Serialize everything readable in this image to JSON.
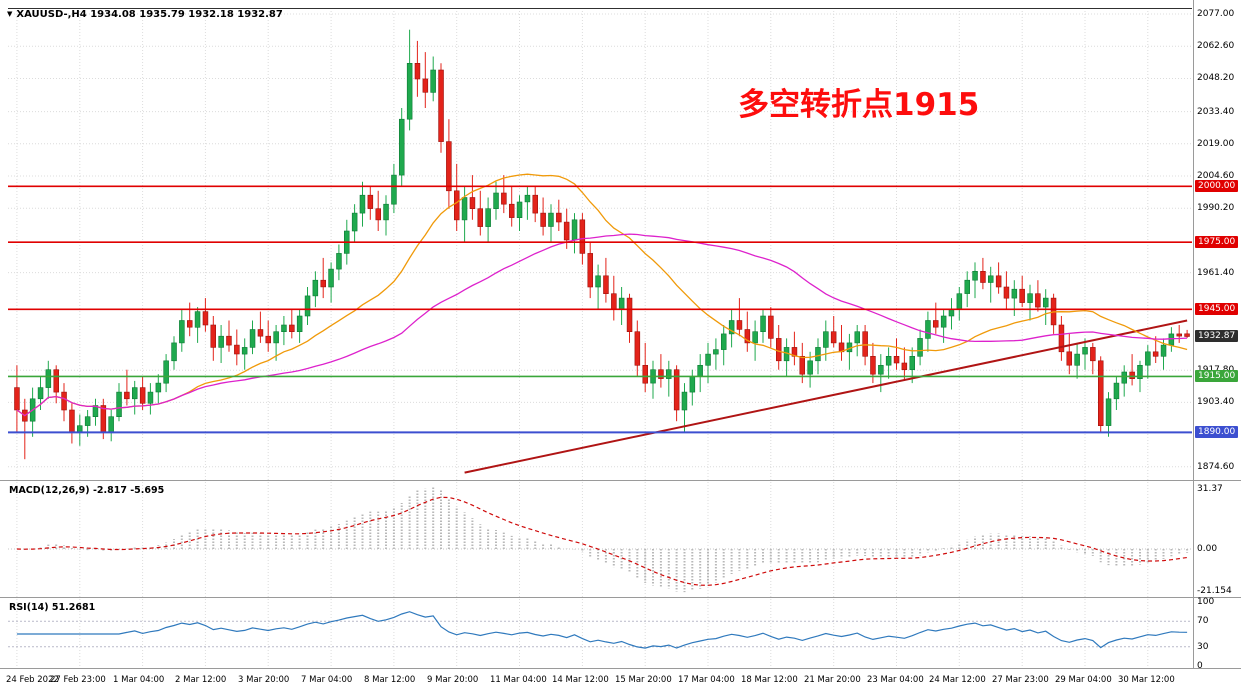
{
  "header": {
    "symbol_line": "XAUUSD-,H4 1934.08 1935.79 1932.18 1932.87"
  },
  "annotation": {
    "text": "多空转折点1915",
    "color": "#fd0d0d"
  },
  "colors": {
    "candle_up": "#1fa94e",
    "candle_up_border": "#0c7a34",
    "candle_down": "#e3231a",
    "candle_down_border": "#9c100c",
    "grid": "#dcdcdc",
    "separator": "#9a9a9a",
    "chart_top_border": "#303030",
    "macd_hist": "#b8b8b8",
    "macd_signal": "#cf0a0a",
    "rsi": "#2f79bd",
    "rsi_levels": "#b9b9c9"
  },
  "chart_data": {
    "type": "candlestick",
    "symbol": "XAUUSD-",
    "timeframe": "H4",
    "ohlc_display": {
      "open": "1934.08",
      "high": "1935.79",
      "low": "1932.18",
      "close": "1932.87"
    },
    "price_ticks": [
      2077.0,
      2062.6,
      2048.2,
      2033.4,
      2019.0,
      2004.6,
      1990.2,
      1961.4,
      1917.8,
      1903.4,
      1874.6
    ],
    "price_tags": [
      {
        "label": "2000.00",
        "price": 2000.0,
        "bg": "#e00000",
        "line_color": "#e00000",
        "line_width": 1.6
      },
      {
        "label": "1975.00",
        "price": 1975.0,
        "bg": "#e00000",
        "line_color": "#e00000",
        "line_width": 1.6
      },
      {
        "label": "1945.00",
        "price": 1945.0,
        "bg": "#e00000",
        "line_color": "#e00000",
        "line_width": 1.6
      },
      {
        "label": "1932.87",
        "price": 1932.87,
        "bg": "#2e2e2e"
      },
      {
        "label": "1915.00",
        "price": 1915.0,
        "bg": "#3aa63a",
        "line_color": "#3aa63a",
        "line_width": 1.6
      },
      {
        "label": "1890.00",
        "price": 1890.0,
        "bg": "#3c4fd0",
        "line_color": "#3c4fd0",
        "line_width": 2
      }
    ],
    "time_labels": [
      "24 Feb 2022",
      "27 Feb 23:00",
      "1 Mar 04:00",
      "2 Mar 12:00",
      "3 Mar 20:00",
      "7 Mar 04:00",
      "8 Mar 12:00",
      "9 Mar 20:00",
      "11 Mar 04:00",
      "14 Mar 12:00",
      "15 Mar 20:00",
      "17 Mar 04:00",
      "18 Mar 12:00",
      "21 Mar 20:00",
      "23 Mar 04:00",
      "24 Mar 12:00",
      "27 Mar 23:00",
      "29 Mar 04:00",
      "30 Mar 12:00"
    ],
    "candles_per_label": 8,
    "candles": [
      [
        1910,
        1920,
        1890,
        1900
      ],
      [
        1900,
        1905,
        1878,
        1895
      ],
      [
        1895,
        1910,
        1888,
        1905
      ],
      [
        1905,
        1915,
        1900,
        1910
      ],
      [
        1910,
        1922,
        1905,
        1918
      ],
      [
        1918,
        1920,
        1903,
        1908
      ],
      [
        1908,
        1912,
        1895,
        1900
      ],
      [
        1900,
        1903,
        1885,
        1890
      ],
      [
        1890,
        1898,
        1884,
        1893
      ],
      [
        1893,
        1900,
        1888,
        1897
      ],
      [
        1897,
        1905,
        1893,
        1902
      ],
      [
        1902,
        1905,
        1887,
        1890
      ],
      [
        1890,
        1900,
        1886,
        1897
      ],
      [
        1897,
        1912,
        1895,
        1908
      ],
      [
        1908,
        1918,
        1902,
        1905
      ],
      [
        1905,
        1913,
        1898,
        1910
      ],
      [
        1910,
        1915,
        1900,
        1903
      ],
      [
        1903,
        1912,
        1898,
        1908
      ],
      [
        1908,
        1916,
        1903,
        1912
      ],
      [
        1912,
        1925,
        1908,
        1922
      ],
      [
        1922,
        1933,
        1918,
        1930
      ],
      [
        1930,
        1945,
        1926,
        1940
      ],
      [
        1940,
        1948,
        1933,
        1937
      ],
      [
        1937,
        1946,
        1930,
        1944
      ],
      [
        1944,
        1950,
        1935,
        1938
      ],
      [
        1938,
        1942,
        1922,
        1928
      ],
      [
        1928,
        1938,
        1921,
        1933
      ],
      [
        1933,
        1940,
        1926,
        1929
      ],
      [
        1929,
        1936,
        1920,
        1925
      ],
      [
        1925,
        1932,
        1918,
        1928
      ],
      [
        1928,
        1940,
        1925,
        1936
      ],
      [
        1936,
        1944,
        1930,
        1933
      ],
      [
        1933,
        1940,
        1926,
        1930
      ],
      [
        1930,
        1938,
        1922,
        1935
      ],
      [
        1935,
        1942,
        1929,
        1938
      ],
      [
        1938,
        1945,
        1932,
        1935
      ],
      [
        1935,
        1945,
        1930,
        1942
      ],
      [
        1942,
        1955,
        1938,
        1951
      ],
      [
        1951,
        1962,
        1946,
        1958
      ],
      [
        1958,
        1968,
        1950,
        1955
      ],
      [
        1955,
        1966,
        1948,
        1963
      ],
      [
        1963,
        1974,
        1958,
        1970
      ],
      [
        1970,
        1985,
        1965,
        1980
      ],
      [
        1980,
        1992,
        1975,
        1988
      ],
      [
        1988,
        2002,
        1982,
        1996
      ],
      [
        1996,
        2000,
        1985,
        1990
      ],
      [
        1990,
        1998,
        1980,
        1985
      ],
      [
        1985,
        1996,
        1978,
        1992
      ],
      [
        1992,
        2010,
        1988,
        2005
      ],
      [
        2005,
        2035,
        2000,
        2030
      ],
      [
        2030,
        2070,
        2025,
        2055
      ],
      [
        2055,
        2065,
        2040,
        2048
      ],
      [
        2048,
        2060,
        2035,
        2042
      ],
      [
        2042,
        2058,
        2038,
        2052
      ],
      [
        2052,
        2055,
        2015,
        2020
      ],
      [
        2020,
        2030,
        1990,
        1998
      ],
      [
        1998,
        2010,
        1980,
        1985
      ],
      [
        1985,
        2000,
        1975,
        1995
      ],
      [
        1995,
        2005,
        1985,
        1990
      ],
      [
        1990,
        1998,
        1978,
        1982
      ],
      [
        1982,
        1995,
        1975,
        1990
      ],
      [
        1990,
        2002,
        1985,
        1997
      ],
      [
        1997,
        2005,
        1988,
        1992
      ],
      [
        1992,
        2000,
        1982,
        1986
      ],
      [
        1986,
        1996,
        1980,
        1993
      ],
      [
        1993,
        2000,
        1985,
        1996
      ],
      [
        1996,
        2000,
        1984,
        1988
      ],
      [
        1988,
        1995,
        1978,
        1982
      ],
      [
        1982,
        1992,
        1975,
        1988
      ],
      [
        1988,
        1994,
        1980,
        1984
      ],
      [
        1984,
        1990,
        1972,
        1976
      ],
      [
        1976,
        1988,
        1970,
        1985
      ],
      [
        1985,
        1988,
        1965,
        1970
      ],
      [
        1970,
        1975,
        1950,
        1955
      ],
      [
        1955,
        1965,
        1945,
        1960
      ],
      [
        1960,
        1968,
        1948,
        1952
      ],
      [
        1952,
        1960,
        1940,
        1945
      ],
      [
        1945,
        1955,
        1938,
        1950
      ],
      [
        1950,
        1952,
        1930,
        1935
      ],
      [
        1935,
        1940,
        1915,
        1920
      ],
      [
        1920,
        1930,
        1908,
        1912
      ],
      [
        1912,
        1922,
        1905,
        1918
      ],
      [
        1918,
        1925,
        1910,
        1914
      ],
      [
        1914,
        1922,
        1906,
        1918
      ],
      [
        1918,
        1920,
        1895,
        1900
      ],
      [
        1900,
        1912,
        1890,
        1908
      ],
      [
        1908,
        1918,
        1902,
        1915
      ],
      [
        1915,
        1925,
        1908,
        1920
      ],
      [
        1920,
        1930,
        1912,
        1925
      ],
      [
        1925,
        1932,
        1918,
        1927
      ],
      [
        1927,
        1938,
        1920,
        1934
      ],
      [
        1934,
        1945,
        1928,
        1940
      ],
      [
        1940,
        1950,
        1933,
        1936
      ],
      [
        1936,
        1944,
        1926,
        1930
      ],
      [
        1930,
        1940,
        1922,
        1935
      ],
      [
        1935,
        1945,
        1930,
        1942
      ],
      [
        1942,
        1946,
        1928,
        1932
      ],
      [
        1932,
        1938,
        1918,
        1922
      ],
      [
        1922,
        1932,
        1915,
        1928
      ],
      [
        1928,
        1935,
        1920,
        1924
      ],
      [
        1924,
        1930,
        1912,
        1916
      ],
      [
        1916,
        1926,
        1910,
        1922
      ],
      [
        1922,
        1932,
        1916,
        1928
      ],
      [
        1928,
        1940,
        1922,
        1935
      ],
      [
        1935,
        1942,
        1928,
        1930
      ],
      [
        1930,
        1938,
        1922,
        1926
      ],
      [
        1926,
        1934,
        1918,
        1930
      ],
      [
        1930,
        1938,
        1924,
        1935
      ],
      [
        1935,
        1938,
        1920,
        1924
      ],
      [
        1924,
        1930,
        1912,
        1916
      ],
      [
        1916,
        1925,
        1908,
        1920
      ],
      [
        1920,
        1928,
        1914,
        1924
      ],
      [
        1924,
        1932,
        1918,
        1921
      ],
      [
        1921,
        1928,
        1913,
        1918
      ],
      [
        1918,
        1928,
        1912,
        1924
      ],
      [
        1924,
        1936,
        1920,
        1932
      ],
      [
        1932,
        1944,
        1926,
        1940
      ],
      [
        1940,
        1948,
        1934,
        1937
      ],
      [
        1937,
        1945,
        1930,
        1942
      ],
      [
        1942,
        1950,
        1936,
        1945
      ],
      [
        1945,
        1955,
        1940,
        1952
      ],
      [
        1952,
        1962,
        1946,
        1958
      ],
      [
        1958,
        1966,
        1950,
        1962
      ],
      [
        1962,
        1968,
        1954,
        1957
      ],
      [
        1957,
        1964,
        1948,
        1960
      ],
      [
        1960,
        1966,
        1952,
        1955
      ],
      [
        1955,
        1962,
        1945,
        1950
      ],
      [
        1950,
        1958,
        1942,
        1954
      ],
      [
        1954,
        1960,
        1946,
        1948
      ],
      [
        1948,
        1956,
        1940,
        1952
      ],
      [
        1952,
        1958,
        1944,
        1946
      ],
      [
        1946,
        1954,
        1938,
        1950
      ],
      [
        1950,
        1952,
        1934,
        1938
      ],
      [
        1938,
        1942,
        1922,
        1926
      ],
      [
        1926,
        1934,
        1916,
        1920
      ],
      [
        1920,
        1930,
        1914,
        1925
      ],
      [
        1925,
        1932,
        1918,
        1928
      ],
      [
        1928,
        1930,
        1916,
        1922
      ],
      [
        1922,
        1924,
        1890,
        1893
      ],
      [
        1893,
        1908,
        1888,
        1905
      ],
      [
        1905,
        1915,
        1900,
        1912
      ],
      [
        1912,
        1920,
        1906,
        1917
      ],
      [
        1917,
        1925,
        1911,
        1914
      ],
      [
        1914,
        1922,
        1908,
        1920
      ],
      [
        1920,
        1929,
        1914,
        1926
      ],
      [
        1926,
        1933,
        1921,
        1924
      ],
      [
        1924,
        1932,
        1918,
        1929
      ],
      [
        1929,
        1937,
        1926,
        1934
      ],
      [
        1934,
        1938,
        1930,
        1933
      ],
      [
        1934.08,
        1935.79,
        1932.18,
        1932.87
      ]
    ],
    "overlays": {
      "ma_fast": {
        "period": 22,
        "color": "#f09a0a"
      },
      "ma_slow": {
        "period": 50,
        "color": "#dd22cc"
      },
      "trendline": {
        "from_candle": 57,
        "from_price": 1872,
        "to_candle": 149,
        "to_price": 1940,
        "color": "#b01414"
      }
    },
    "macd": {
      "label": "MACD(12,26,9)",
      "value_text": "-2.817 -5.695",
      "fast": 12,
      "slow": 26,
      "signal": 9,
      "axis_labels": [
        "31.37",
        "0.00",
        "-21.154"
      ],
      "axis_values": [
        31.37,
        0,
        -21.154
      ]
    },
    "rsi": {
      "label": "RSI(14)",
      "value_text": "51.2681",
      "period": 14,
      "axis_labels": [
        "100",
        "70",
        "30",
        "0"
      ],
      "axis_values": [
        100,
        70,
        30,
        0
      ],
      "levels": [
        70,
        30
      ]
    }
  }
}
